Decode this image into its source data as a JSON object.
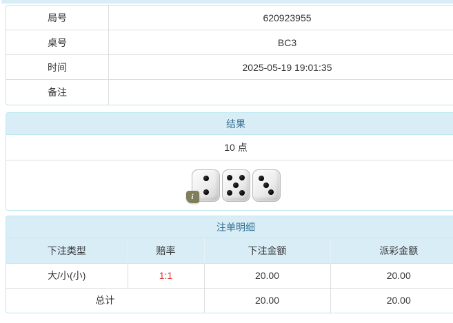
{
  "info_table": {
    "rows": [
      {
        "label": "局号",
        "value": "620923955"
      },
      {
        "label": "桌号",
        "value": "BC3"
      },
      {
        "label": "时间",
        "value": "2025-05-19 19:01:35"
      },
      {
        "label": "备注",
        "value": ""
      }
    ]
  },
  "result_panel": {
    "title": "结果",
    "points": "10 点",
    "dice": [
      2,
      5,
      3
    ],
    "info_icon_glyph": "i"
  },
  "bets_panel": {
    "title": "注单明细",
    "columns": [
      "下注类型",
      "赔率",
      "下注金额",
      "派彩金额"
    ],
    "rows": [
      {
        "bet_type": "大/小(小)",
        "odds": "1:1",
        "bet_amount": "20.00",
        "payout_amount": "20.00"
      }
    ],
    "total": {
      "label": "总计",
      "bet_amount": "20.00",
      "payout_amount": "20.00"
    }
  },
  "colors": {
    "panel_border": "#bce8f1",
    "panel_heading_bg": "#d9edf7",
    "panel_title_text": "#31708f",
    "odds_text": "#e03333",
    "body_text": "#333333",
    "inner_border": "#dddddd"
  }
}
